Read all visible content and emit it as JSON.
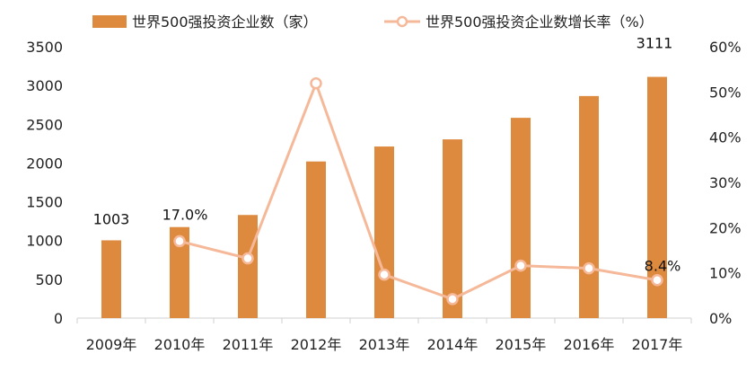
{
  "chart_data": {
    "type": "bar+line",
    "categories": [
      "2009年",
      "2010年",
      "2011年",
      "2012年",
      "2013年",
      "2014年",
      "2015年",
      "2016年",
      "2017年"
    ],
    "series": [
      {
        "name": "世界500强投资企业数（家）",
        "type": "bar",
        "axis": "left",
        "color": "#DE8A3E",
        "values": [
          1003,
          1174,
          1330,
          2020,
          2213,
          2305,
          2583,
          2864,
          3111
        ]
      },
      {
        "name": "世界500强投资企业数增长率（%）",
        "type": "line",
        "axis": "right",
        "color": "#F5B99A",
        "values": [
          null,
          17.0,
          13.2,
          51.9,
          9.6,
          4.2,
          11.6,
          11.0,
          8.4
        ]
      }
    ],
    "left_axis": {
      "min": 0,
      "max": 3500,
      "step": 500,
      "ticks": [
        "0",
        "500",
        "1000",
        "1500",
        "2000",
        "2500",
        "3000",
        "3500"
      ]
    },
    "right_axis": {
      "min": 0,
      "max": 60,
      "step": 10,
      "ticks": [
        "0%",
        "10%",
        "20%",
        "30%",
        "40%",
        "50%",
        "60%"
      ]
    },
    "data_labels": [
      {
        "series": 0,
        "index": 0,
        "text": "1003"
      },
      {
        "series": 0,
        "index": 8,
        "text": "3111"
      },
      {
        "series": 1,
        "index": 1,
        "text": "17.0%"
      },
      {
        "series": 1,
        "index": 8,
        "text": "8.4%"
      }
    ],
    "grid": false,
    "legend_position": "top"
  }
}
